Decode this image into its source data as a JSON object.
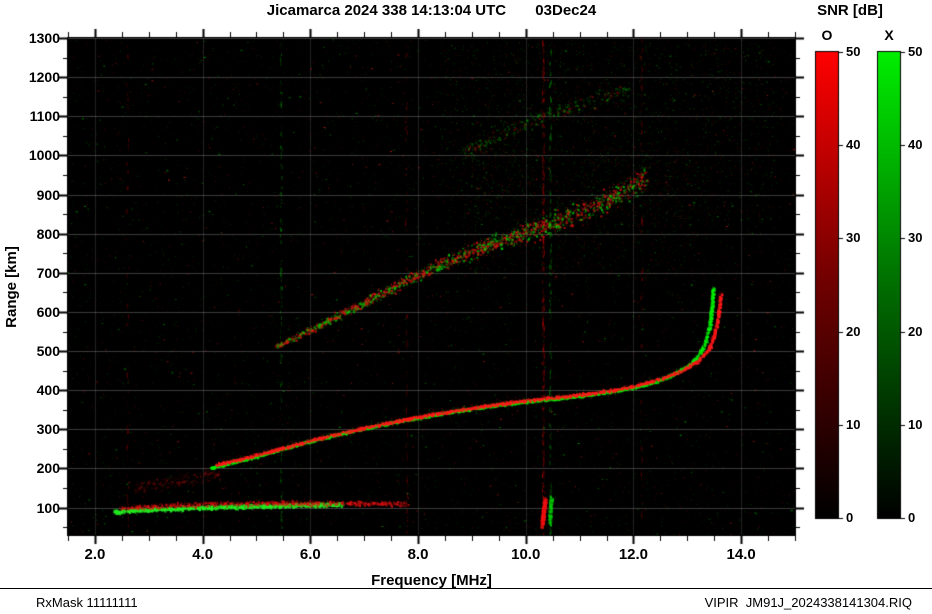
{
  "footer": {
    "left": "RxMask 11111111",
    "right": "VIPIR  JM91J_2024338141304.RIQ"
  },
  "chart_data": {
    "type": "heatmap",
    "title": "Jicamarca 2024 338 14:13:04 UTC       03Dec24",
    "colorbar_title": "SNR [dB]",
    "xlabel": "Frequency [MHz]",
    "ylabel": "Range [km]",
    "xlim": [
      1.5,
      15.0
    ],
    "ylim": [
      30,
      1300
    ],
    "xticks_major": [
      2.0,
      4.0,
      6.0,
      8.0,
      10.0,
      12.0,
      14.0
    ],
    "xtick_labels": [
      "2.0",
      "4.0",
      "6.0",
      "8.0",
      "10.0",
      "12.0",
      "14.0"
    ],
    "xtick_minor_step": 0.5,
    "yticks": [
      100,
      200,
      300,
      400,
      500,
      600,
      700,
      800,
      900,
      1000,
      1100,
      1200,
      1300
    ],
    "ytick_minor_step": 50,
    "grid": true,
    "background": "#000000",
    "grid_color_h": "rgba(170,170,170,0.35)",
    "grid_color_v": "rgba(170,170,170,0.20)",
    "colorbars": [
      {
        "label": "O",
        "mode": "ordinary",
        "gradient": [
          "#000000",
          "#6e0000",
          "#ff0000"
        ],
        "range": [
          0,
          50
        ],
        "ticks": [
          0,
          10,
          20,
          30,
          40,
          50
        ]
      },
      {
        "label": "X",
        "mode": "extraordinary",
        "gradient": [
          "#000000",
          "#006e00",
          "#00ee00"
        ],
        "range": [
          0,
          50
        ],
        "ticks": [
          0,
          10,
          20,
          30,
          40,
          50
        ]
      }
    ],
    "traces": [
      {
        "name": "e-layer-x-mode",
        "color": "#22ee22",
        "spread_km": 8,
        "density": 1600,
        "alpha": [
          0.25,
          1.0
        ],
        "thick": 0.5,
        "points": [
          [
            2.35,
            90
          ],
          [
            3.0,
            96
          ],
          [
            3.7,
            100
          ],
          [
            4.5,
            104
          ],
          [
            5.3,
            106
          ],
          [
            6.1,
            108
          ],
          [
            6.6,
            109
          ]
        ]
      },
      {
        "name": "e-layer-o-mode",
        "color": "#dd1111",
        "spread_km": 9,
        "density": 1000,
        "alpha": [
          0.15,
          0.8
        ],
        "thick": 0.4,
        "points": [
          [
            2.45,
            99
          ],
          [
            3.3,
            106
          ],
          [
            4.2,
            111
          ],
          [
            5.2,
            113
          ],
          [
            6.2,
            113
          ],
          [
            7.1,
            112
          ],
          [
            7.8,
            111
          ]
        ]
      },
      {
        "name": "f-layer-x-mode",
        "color": "#00ee00",
        "spread_km": 5,
        "density": 3000,
        "alpha": [
          0.45,
          1.0
        ],
        "thick": 0.65,
        "halo": true,
        "points": [
          [
            4.15,
            203
          ],
          [
            4.5,
            214
          ],
          [
            5.0,
            232
          ],
          [
            5.5,
            252
          ],
          [
            6.0,
            271
          ],
          [
            6.5,
            288
          ],
          [
            7.0,
            303
          ],
          [
            7.5,
            318
          ],
          [
            8.0,
            331
          ],
          [
            8.5,
            343
          ],
          [
            9.0,
            354
          ],
          [
            9.5,
            364
          ],
          [
            10.0,
            372
          ],
          [
            10.5,
            379
          ],
          [
            11.0,
            387
          ],
          [
            11.5,
            396
          ],
          [
            12.0,
            408
          ],
          [
            12.4,
            423
          ],
          [
            12.7,
            440
          ],
          [
            13.0,
            463
          ],
          [
            13.2,
            489
          ],
          [
            13.32,
            520
          ],
          [
            13.4,
            562
          ],
          [
            13.45,
            615
          ],
          [
            13.47,
            662
          ]
        ]
      },
      {
        "name": "f-layer-o-mode",
        "color": "#ff1a1a",
        "spread_km": 5.5,
        "density": 2600,
        "alpha": [
          0.4,
          1.0
        ],
        "thick": 0.6,
        "halo": true,
        "points": [
          [
            4.25,
            211
          ],
          [
            4.7,
            225
          ],
          [
            5.2,
            243
          ],
          [
            5.7,
            262
          ],
          [
            6.2,
            280
          ],
          [
            6.7,
            296
          ],
          [
            7.2,
            311
          ],
          [
            7.7,
            325
          ],
          [
            8.2,
            338
          ],
          [
            8.7,
            350
          ],
          [
            9.2,
            360
          ],
          [
            9.7,
            370
          ],
          [
            10.2,
            378
          ],
          [
            10.7,
            385
          ],
          [
            11.2,
            393
          ],
          [
            11.7,
            403
          ],
          [
            12.1,
            415
          ],
          [
            12.5,
            430
          ],
          [
            12.9,
            452
          ],
          [
            13.2,
            478
          ],
          [
            13.4,
            508
          ],
          [
            13.5,
            545
          ],
          [
            13.57,
            592
          ],
          [
            13.61,
            648
          ]
        ]
      },
      {
        "name": "second-hop-spread",
        "colors": [
          [
            "#dd1111",
            0.58
          ],
          [
            "#00cc00",
            0.42
          ]
        ],
        "spread_km": 9,
        "spread_km_end": 48,
        "density": 2300,
        "alpha": [
          0.15,
          0.85
        ],
        "thick": 0.45,
        "points": [
          [
            5.35,
            512
          ],
          [
            5.85,
            545
          ],
          [
            6.35,
            580
          ],
          [
            6.85,
            615
          ],
          [
            7.35,
            650
          ],
          [
            7.85,
            685
          ],
          [
            8.35,
            718
          ],
          [
            8.85,
            748
          ],
          [
            9.35,
            775
          ],
          [
            9.85,
            798
          ],
          [
            10.35,
            820
          ],
          [
            10.85,
            845
          ],
          [
            11.35,
            876
          ],
          [
            11.85,
            912
          ],
          [
            12.25,
            948
          ]
        ]
      },
      {
        "name": "upper-spread-echo",
        "colors": [
          [
            "#00bb00",
            0.6
          ],
          [
            "#bb1111",
            0.4
          ]
        ],
        "spread_km": 30,
        "density": 420,
        "alpha": [
          0.12,
          0.5
        ],
        "thick": 0.35,
        "points": [
          [
            8.8,
            1005
          ],
          [
            9.6,
            1060
          ],
          [
            10.4,
            1105
          ],
          [
            11.2,
            1140
          ],
          [
            11.9,
            1168
          ]
        ]
      },
      {
        "name": "low-left-scatter",
        "color": "#aa1111",
        "spread_km": 28,
        "density": 260,
        "alpha": [
          0.08,
          0.4
        ],
        "thick": 0.35,
        "points": [
          [
            2.7,
            150
          ],
          [
            3.5,
            168
          ],
          [
            4.3,
            190
          ]
        ]
      },
      {
        "name": "rfi-blob-red",
        "color": "#ee1111",
        "spread_km": 12,
        "density": 300,
        "alpha": [
          0.25,
          1.0
        ],
        "thick": 0.5,
        "points": [
          [
            10.29,
            55
          ],
          [
            10.35,
            125
          ]
        ]
      },
      {
        "name": "rfi-blob-green",
        "color": "#00cc00",
        "spread_km": 10,
        "density": 140,
        "alpha": [
          0.2,
          0.9
        ],
        "thick": 0.4,
        "points": [
          [
            10.43,
            60
          ],
          [
            10.47,
            135
          ]
        ]
      }
    ],
    "rfi_lines": [
      {
        "f": 2.6,
        "color": "#aa0000",
        "density": 60
      },
      {
        "f": 5.45,
        "color": "#00aa00",
        "density": 110
      },
      {
        "f": 7.78,
        "color": "#aa0000",
        "density": 80
      },
      {
        "f": 10.32,
        "color": "#cc0000",
        "density": 300
      },
      {
        "f": 10.45,
        "color": "#00aa00",
        "density": 170
      },
      {
        "f": 12.15,
        "color": "#aa0000",
        "density": 70
      }
    ],
    "noise": {
      "count": 9000,
      "bright_count": 700,
      "colors": [
        "#ff2222",
        "#00dd00"
      ],
      "regions": [
        {
          "f0": 8.4,
          "f1": 14.6,
          "r0": 830,
          "r1": 1290,
          "count": 1600,
          "colors": [
            "#00bb00",
            "#bb1111"
          ]
        },
        {
          "f0": 8.8,
          "f1": 13.2,
          "r0": 680,
          "r1": 1020,
          "count": 900,
          "colors": [
            "#bb1111",
            "#00bb00"
          ]
        }
      ]
    }
  }
}
